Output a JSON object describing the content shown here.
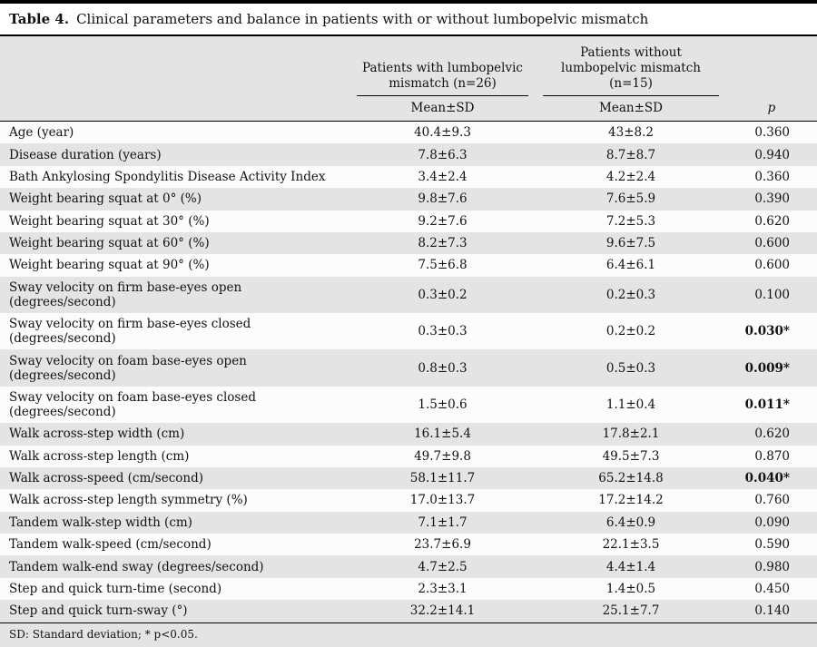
{
  "caption": {
    "label": "Table 4.",
    "text": "Clinical parameters and balance in patients with or without lumbopelvic mismatch"
  },
  "table": {
    "group_headers": [
      "Patients with lumbopelvic mismatch (n=26)",
      "Patients without lumbopelvic mismatch (n=15)"
    ],
    "sub_headers": [
      "Mean±SD",
      "Mean±SD",
      "p"
    ],
    "rows": [
      {
        "parameter": "Age (year)",
        "with_mismatch": "40.4±9.3",
        "without_mismatch": "43±8.2",
        "p": "0.360",
        "significant": false
      },
      {
        "parameter": "Disease duration (years)",
        "with_mismatch": "7.8±6.3",
        "without_mismatch": "8.7±8.7",
        "p": "0.940",
        "significant": false
      },
      {
        "parameter": "Bath Ankylosing Spondylitis Disease Activity Index",
        "with_mismatch": "3.4±2.4",
        "without_mismatch": "4.2±2.4",
        "p": "0.360",
        "significant": false
      },
      {
        "parameter": "Weight bearing squat at 0° (%)",
        "with_mismatch": "9.8±7.6",
        "without_mismatch": "7.6±5.9",
        "p": "0.390",
        "significant": false
      },
      {
        "parameter": "Weight bearing squat at 30° (%)",
        "with_mismatch": "9.2±7.6",
        "without_mismatch": "7.2±5.3",
        "p": "0.620",
        "significant": false
      },
      {
        "parameter": "Weight bearing squat at 60° (%)",
        "with_mismatch": "8.2±7.3",
        "without_mismatch": "9.6±7.5",
        "p": "0.600",
        "significant": false
      },
      {
        "parameter": "Weight bearing squat at 90° (%)",
        "with_mismatch": "7.5±6.8",
        "without_mismatch": "6.4±6.1",
        "p": "0.600",
        "significant": false
      },
      {
        "parameter": "Sway velocity on firm base-eyes open (degrees/second)",
        "with_mismatch": "0.3±0.2",
        "without_mismatch": "0.2±0.3",
        "p": "0.100",
        "significant": false
      },
      {
        "parameter": "Sway velocity on firm base-eyes closed (degrees/second)",
        "with_mismatch": "0.3±0.3",
        "without_mismatch": "0.2±0.2",
        "p": "0.030*",
        "significant": true
      },
      {
        "parameter": "Sway velocity on foam base-eyes open (degrees/second)",
        "with_mismatch": "0.8±0.3",
        "without_mismatch": "0.5±0.3",
        "p": "0.009*",
        "significant": true
      },
      {
        "parameter": "Sway velocity on foam base-eyes closed (degrees/second)",
        "with_mismatch": "1.5±0.6",
        "without_mismatch": "1.1±0.4",
        "p": "0.011*",
        "significant": true
      },
      {
        "parameter": "Walk across-step width (cm)",
        "with_mismatch": "16.1±5.4",
        "without_mismatch": "17.8±2.1",
        "p": "0.620",
        "significant": false
      },
      {
        "parameter": "Walk across-step length (cm)",
        "with_mismatch": "49.7±9.8",
        "without_mismatch": "49.5±7.3",
        "p": "0.870",
        "significant": false
      },
      {
        "parameter": "Walk across-speed (cm/second)",
        "with_mismatch": "58.1±11.7",
        "without_mismatch": "65.2±14.8",
        "p": "0.040*",
        "significant": true
      },
      {
        "parameter": "Walk across-step length symmetry (%)",
        "with_mismatch": "17.0±13.7",
        "without_mismatch": "17.2±14.2",
        "p": "0.760",
        "significant": false
      },
      {
        "parameter": "Tandem walk-step width (cm)",
        "with_mismatch": "7.1±1.7",
        "without_mismatch": "6.4±0.9",
        "p": "0.090",
        "significant": false
      },
      {
        "parameter": "Tandem walk-speed (cm/second)",
        "with_mismatch": "23.7±6.9",
        "without_mismatch": "22.1±3.5",
        "p": "0.590",
        "significant": false
      },
      {
        "parameter": "Tandem walk-end sway (degrees/second)",
        "with_mismatch": "4.7±2.5",
        "without_mismatch": "4.4±1.4",
        "p": "0.980",
        "significant": false
      },
      {
        "parameter": "Step and quick turn-time (second)",
        "with_mismatch": "2.3±3.1",
        "without_mismatch": "1.4±0.5",
        "p": "0.450",
        "significant": false
      },
      {
        "parameter": "Step and quick turn-sway (°)",
        "with_mismatch": "32.2±14.1",
        "without_mismatch": "25.1±7.7",
        "p": "0.140",
        "significant": false
      }
    ]
  },
  "footnote": "SD: Standard deviation; * p<0.05.",
  "colors": {
    "band_gray": "#e4e4e4",
    "row_white": "#fcfcfc",
    "rule_black": "#000000"
  }
}
